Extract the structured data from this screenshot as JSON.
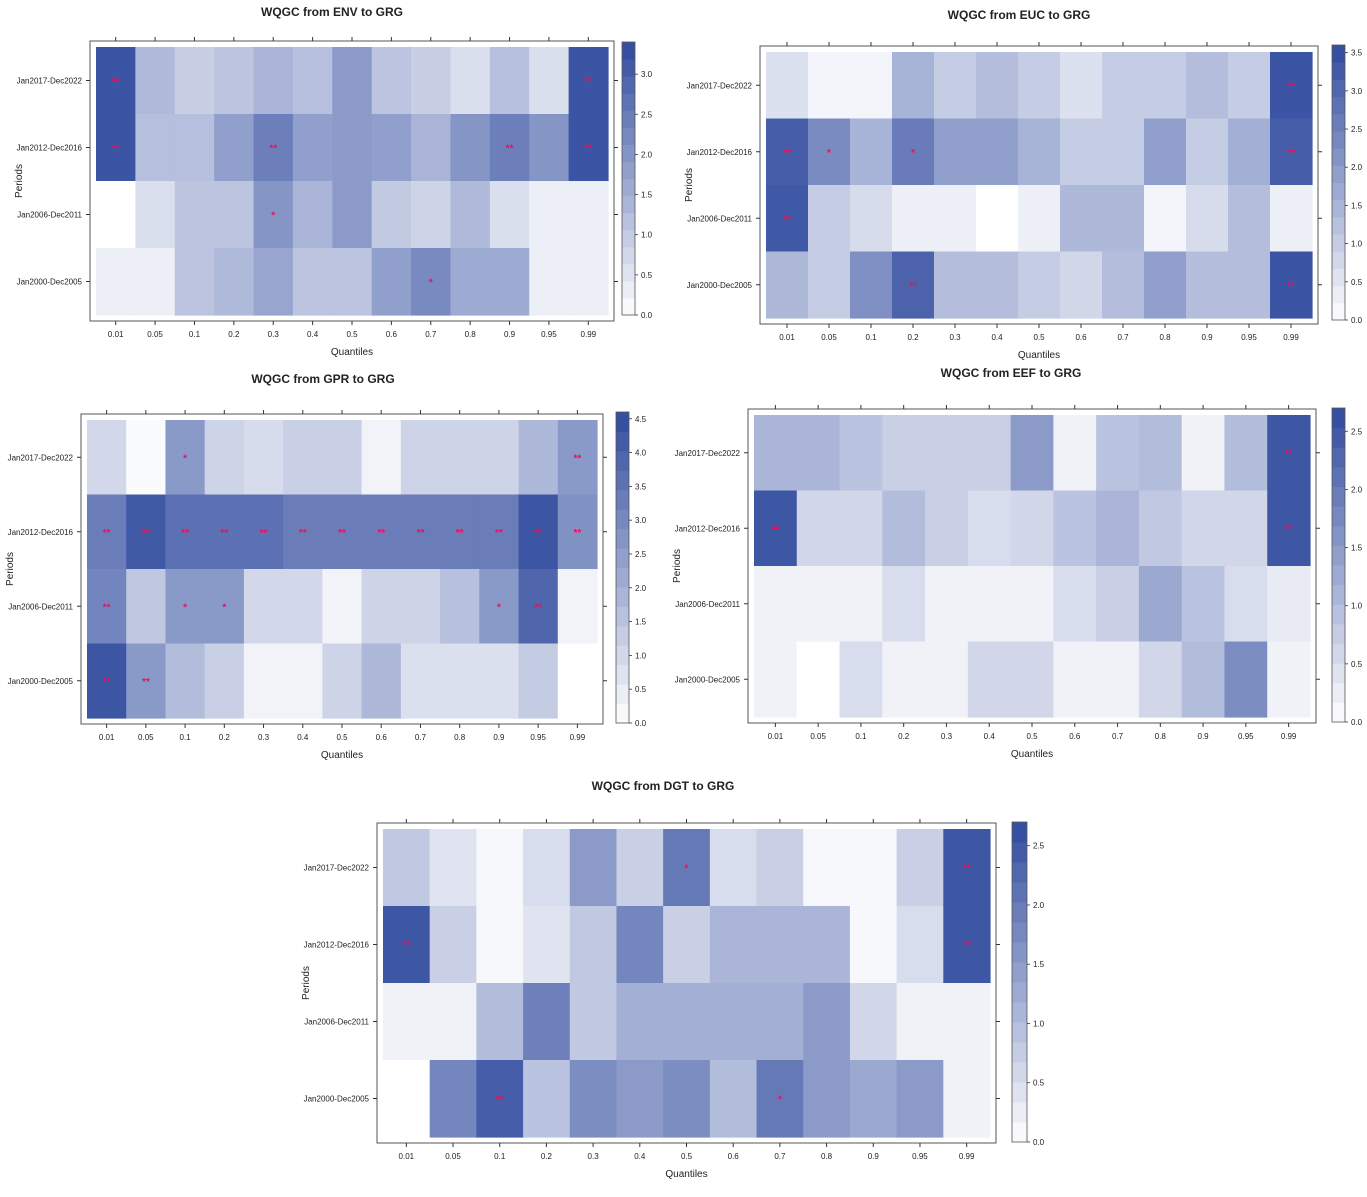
{
  "colors": {
    "low": "#ffffff",
    "high": "#2f4a9e",
    "star": "#e8105a",
    "frame": "#555555"
  },
  "chart_data": [
    {
      "type": "heatmap",
      "title": "WQGC from ENV to GRG",
      "xlabel": "Quantiles",
      "ylabel": "Periods",
      "x": [
        "0.01",
        "0.05",
        "0.1",
        "0.2",
        "0.3",
        "0.4",
        "0.5",
        "0.6",
        "0.7",
        "0.8",
        "0.9",
        "0.95",
        "0.99"
      ],
      "y": [
        "Jan2017-Dec2022",
        "Jan2012-Dec2016",
        "Jan2006-Dec2011",
        "Jan2000-Dec2005"
      ],
      "zlim": [
        0,
        3.4
      ],
      "legend_ticks": [
        "0.0",
        "0.5",
        "1.0",
        "1.5",
        "2.0",
        "2.5",
        "3.0"
      ],
      "legend_tick_values": [
        0,
        0.5,
        1,
        1.5,
        2,
        2.5,
        3
      ],
      "values": [
        [
          3.2,
          1.3,
          0.9,
          1.1,
          1.4,
          1.2,
          1.9,
          1.1,
          0.9,
          0.6,
          1.2,
          0.6,
          3.2
        ],
        [
          3.2,
          1.2,
          1.2,
          1.8,
          2.4,
          1.8,
          1.9,
          1.8,
          1.4,
          2.0,
          2.4,
          2.0,
          3.2
        ],
        [
          0.0,
          0.6,
          1.1,
          1.1,
          2.0,
          1.4,
          1.9,
          1.0,
          0.8,
          1.3,
          0.6,
          0.3,
          0.3
        ],
        [
          0.3,
          0.3,
          1.1,
          1.3,
          1.7,
          1.1,
          1.1,
          1.8,
          2.2,
          1.6,
          1.6,
          0.3,
          0.3
        ]
      ],
      "stars": [
        [
          "**",
          "",
          "",
          "",
          "",
          "",
          "",
          "",
          "",
          "",
          "",
          "",
          "**"
        ],
        [
          "**",
          "",
          "",
          "",
          "**",
          "",
          "",
          "",
          "",
          "",
          "**",
          "",
          "**"
        ],
        [
          "",
          "",
          "",
          "",
          "*",
          "",
          "",
          "",
          "",
          "",
          "",
          "",
          ""
        ],
        [
          "",
          "",
          "",
          "",
          "",
          "",
          "",
          "",
          "*",
          "",
          "",
          "",
          ""
        ]
      ]
    },
    {
      "type": "heatmap",
      "title": "WQGC from EUC to GRG",
      "xlabel": "Quantiles",
      "ylabel": "Periods",
      "x": [
        "0.01",
        "0.05",
        "0.1",
        "0.2",
        "0.3",
        "0.4",
        "0.5",
        "0.6",
        "0.7",
        "0.8",
        "0.9",
        "0.95",
        "0.99"
      ],
      "y": [
        "Jan2017-Dec2022",
        "Jan2012-Dec2016",
        "Jan2006-Dec2011",
        "Jan2000-Dec2005"
      ],
      "zlim": [
        0,
        3.6
      ],
      "legend_ticks": [
        "0.0",
        "0.5",
        "1.0",
        "1.5",
        "2.0",
        "2.5",
        "3.0",
        "3.5"
      ],
      "legend_tick_values": [
        0,
        0.5,
        1,
        1.5,
        2,
        2.5,
        3,
        3.5
      ],
      "values": [
        [
          0.6,
          0.2,
          0.2,
          1.5,
          1.0,
          1.3,
          1.0,
          0.6,
          1.0,
          1.0,
          1.3,
          1.0,
          3.4
        ],
        [
          3.2,
          2.3,
          1.5,
          2.6,
          1.9,
          1.9,
          1.5,
          1.0,
          1.0,
          1.9,
          1.0,
          1.6,
          3.2
        ],
        [
          3.3,
          1.0,
          0.7,
          0.3,
          0.3,
          0.0,
          0.3,
          1.4,
          1.4,
          0.2,
          0.7,
          1.3,
          0.3
        ],
        [
          1.4,
          1.0,
          2.2,
          3.1,
          1.3,
          1.3,
          1.0,
          0.8,
          1.3,
          1.9,
          1.3,
          1.3,
          3.4
        ]
      ],
      "stars": [
        [
          "",
          "",
          "",
          "",
          "",
          "",
          "",
          "",
          "",
          "",
          "",
          "",
          "**"
        ],
        [
          "**",
          "*",
          "",
          "*",
          "",
          "",
          "",
          "",
          "",
          "",
          "",
          "",
          "**"
        ],
        [
          "**",
          "",
          "",
          "",
          "",
          "",
          "",
          "",
          "",
          "",
          "",
          "",
          ""
        ],
        [
          "",
          "",
          "",
          "**",
          "",
          "",
          "",
          "",
          "",
          "",
          "",
          "",
          "**"
        ]
      ]
    },
    {
      "type": "heatmap",
      "title": "WQGC from GPR to GRG",
      "xlabel": "Quantiles",
      "ylabel": "Periods",
      "x": [
        "0.01",
        "0.05",
        "0.1",
        "0.2",
        "0.3",
        "0.4",
        "0.5",
        "0.6",
        "0.7",
        "0.8",
        "0.9",
        "0.95",
        "0.99"
      ],
      "y": [
        "Jan2017-Dec2022",
        "Jan2012-Dec2016",
        "Jan2006-Dec2011",
        "Jan2000-Dec2005"
      ],
      "zlim": [
        0,
        4.6
      ],
      "legend_ticks": [
        "0.0",
        "0.5",
        "1.0",
        "1.5",
        "2.0",
        "2.5",
        "3.0",
        "3.5",
        "4.0",
        "4.5"
      ],
      "legend_tick_values": [
        0,
        0.5,
        1,
        1.5,
        2,
        2.5,
        3,
        3.5,
        4,
        4.5
      ],
      "values": [
        [
          1.0,
          0.1,
          2.6,
          1.1,
          0.9,
          1.2,
          1.2,
          0.3,
          1.1,
          1.1,
          1.1,
          1.8,
          2.6
        ],
        [
          3.3,
          4.2,
          3.6,
          3.6,
          3.6,
          3.3,
          3.3,
          3.3,
          3.3,
          3.3,
          3.3,
          4.3,
          2.8
        ],
        [
          3.1,
          1.4,
          2.6,
          2.6,
          1.0,
          1.0,
          0.3,
          1.1,
          1.1,
          1.6,
          2.6,
          3.9,
          0.3
        ],
        [
          4.3,
          2.6,
          1.7,
          1.2,
          0.3,
          0.3,
          1.1,
          1.8,
          0.8,
          0.8,
          0.8,
          1.3,
          0.0
        ]
      ],
      "stars": [
        [
          "",
          "",
          "*",
          "",
          "",
          "",
          "",
          "",
          "",
          "",
          "",
          "",
          "**"
        ],
        [
          "**",
          "**",
          "**",
          "**",
          "**",
          "**",
          "**",
          "**",
          "**",
          "**",
          "**",
          "**",
          "**"
        ],
        [
          "**",
          "",
          "*",
          "*",
          "",
          "",
          "",
          "",
          "",
          "",
          "*",
          "**",
          ""
        ],
        [
          "**",
          "**",
          "",
          "",
          "",
          "",
          "",
          "",
          "",
          "",
          "",
          "",
          ""
        ]
      ]
    },
    {
      "type": "heatmap",
      "title": "WQGC from EEF to GRG",
      "xlabel": "Quantiles",
      "ylabel": "Periods",
      "x": [
        "0.01",
        "0.05",
        "0.1",
        "0.2",
        "0.3",
        "0.4",
        "0.5",
        "0.6",
        "0.7",
        "0.8",
        "0.9",
        "0.95",
        "0.99"
      ],
      "y": [
        "Jan2017-Dec2022",
        "Jan2012-Dec2016",
        "Jan2006-Dec2011",
        "Jan2000-Dec2005"
      ],
      "zlim": [
        0,
        2.7
      ],
      "legend_ticks": [
        "0.0",
        "0.5",
        "1.0",
        "1.5",
        "2.0",
        "2.5"
      ],
      "legend_tick_values": [
        0,
        0.5,
        1,
        1.5,
        2,
        2.5
      ],
      "values": [
        [
          1.1,
          1.1,
          0.9,
          0.7,
          0.7,
          0.7,
          1.5,
          0.2,
          0.9,
          1.0,
          0.2,
          1.0,
          2.5
        ],
        [
          2.5,
          0.6,
          0.6,
          1.0,
          0.7,
          0.5,
          0.6,
          0.9,
          1.1,
          0.8,
          0.6,
          0.6,
          2.5
        ],
        [
          0.2,
          0.2,
          0.2,
          0.5,
          0.2,
          0.2,
          0.2,
          0.5,
          0.7,
          1.3,
          0.9,
          0.5,
          0.3
        ],
        [
          0.2,
          0.0,
          0.5,
          0.2,
          0.2,
          0.6,
          0.6,
          0.2,
          0.2,
          0.6,
          1.0,
          1.7,
          0.2
        ]
      ],
      "stars": [
        [
          "",
          "",
          "",
          "",
          "",
          "",
          "",
          "",
          "",
          "",
          "",
          "",
          "**"
        ],
        [
          "**",
          "",
          "",
          "",
          "",
          "",
          "",
          "",
          "",
          "",
          "",
          "",
          "**"
        ],
        [
          "",
          "",
          "",
          "",
          "",
          "",
          "",
          "",
          "",
          "",
          "",
          "",
          ""
        ],
        [
          "",
          "",
          "",
          "",
          "",
          "",
          "",
          "",
          "",
          "",
          "",
          "",
          ""
        ]
      ]
    },
    {
      "type": "heatmap",
      "title": "WQGC from DGT to GRG",
      "xlabel": "Quantiles",
      "ylabel": "Periods",
      "x": [
        "0.01",
        "0.05",
        "0.1",
        "0.2",
        "0.3",
        "0.4",
        "0.5",
        "0.6",
        "0.7",
        "0.8",
        "0.9",
        "0.95",
        "0.99"
      ],
      "y": [
        "Jan2017-Dec2022",
        "Jan2012-Dec2016",
        "Jan2006-Dec2011",
        "Jan2000-Dec2005"
      ],
      "zlim": [
        0,
        2.7
      ],
      "legend_ticks": [
        "0.0",
        "0.5",
        "1.0",
        "1.5",
        "2.0",
        "2.5"
      ],
      "legend_tick_values": [
        0,
        0.5,
        1,
        1.5,
        2,
        2.5
      ],
      "values": [
        [
          0.8,
          0.4,
          0.1,
          0.5,
          1.5,
          0.7,
          2.0,
          0.5,
          0.7,
          0.1,
          0.1,
          0.7,
          2.5
        ],
        [
          2.5,
          0.7,
          0.1,
          0.4,
          0.8,
          1.8,
          0.7,
          1.1,
          1.1,
          1.1,
          0.1,
          0.5,
          2.5
        ],
        [
          0.2,
          0.2,
          1.0,
          1.9,
          0.8,
          1.2,
          1.2,
          1.2,
          1.2,
          1.5,
          0.6,
          0.2,
          0.2
        ],
        [
          0.0,
          1.8,
          2.4,
          0.9,
          1.7,
          1.5,
          1.7,
          1.0,
          2.0,
          1.5,
          1.3,
          1.5,
          0.2
        ]
      ],
      "stars": [
        [
          "",
          "",
          "",
          "",
          "",
          "",
          "*",
          "",
          "",
          "",
          "",
          "",
          "**"
        ],
        [
          "**",
          "",
          "",
          "",
          "",
          "",
          "",
          "",
          "",
          "",
          "",
          "",
          "**"
        ],
        [
          "",
          "",
          "",
          "",
          "",
          "",
          "",
          "",
          "",
          "",
          "",
          "",
          ""
        ],
        [
          "",
          "",
          "**",
          "",
          "",
          "",
          "",
          "",
          "*",
          "",
          "",
          "",
          ""
        ]
      ]
    }
  ]
}
